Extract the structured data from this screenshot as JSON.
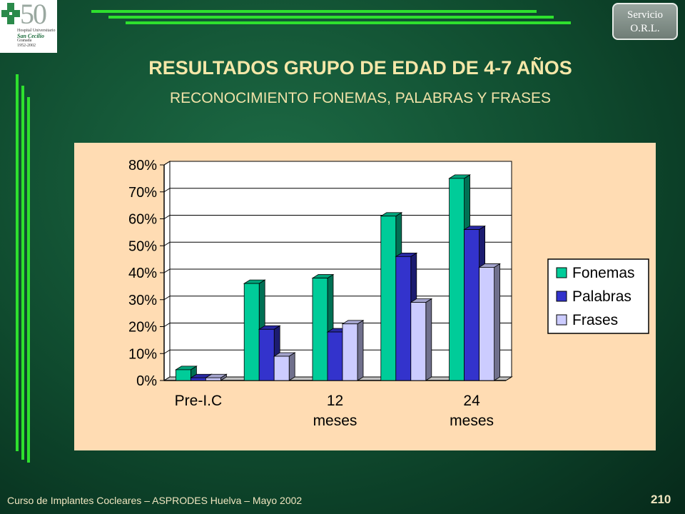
{
  "header": {
    "logo": {
      "number": "50",
      "line1": "Hospital Universitario",
      "line2": "San Cecilio",
      "line3": "Granada",
      "line4": "1952-2002"
    },
    "service_line1": "Servicio",
    "service_line2": "O.R.L."
  },
  "title": "RESULTADOS GRUPO DE EDAD DE 4-7 AÑOS",
  "subtitle": "RECONOCIMIENTO FONEMAS, PALABRAS Y FRASES",
  "footer": {
    "text": "Curso de Implantes Cocleares – ASPRODES Huelva – Mayo 2002",
    "page": "210"
  },
  "colors": {
    "Fonemas": "#00cc99",
    "Palabras": "#3333cc",
    "Frases": "#ccccff",
    "accent_lines": "#2ee02e"
  },
  "chart_data": {
    "type": "bar",
    "categories": [
      "Pre-I.C",
      "",
      "12 meses",
      "",
      "24 meses"
    ],
    "category_labels": [
      [
        "Pre-I.C"
      ],
      [],
      [
        "12",
        "meses"
      ],
      [],
      [
        "24",
        "meses"
      ]
    ],
    "series": [
      {
        "name": "Fonemas",
        "values": [
          4,
          36,
          38,
          61,
          75
        ]
      },
      {
        "name": "Palabras",
        "values": [
          1,
          19,
          18,
          46,
          56
        ]
      },
      {
        "name": "Frases",
        "values": [
          1,
          9,
          21,
          29,
          42
        ]
      }
    ],
    "ylim": [
      0,
      80
    ],
    "yticks": [
      "0%",
      "10%",
      "20%",
      "30%",
      "40%",
      "50%",
      "60%",
      "70%",
      "80%"
    ],
    "legend": "right",
    "grid": true,
    "style": "3d"
  }
}
